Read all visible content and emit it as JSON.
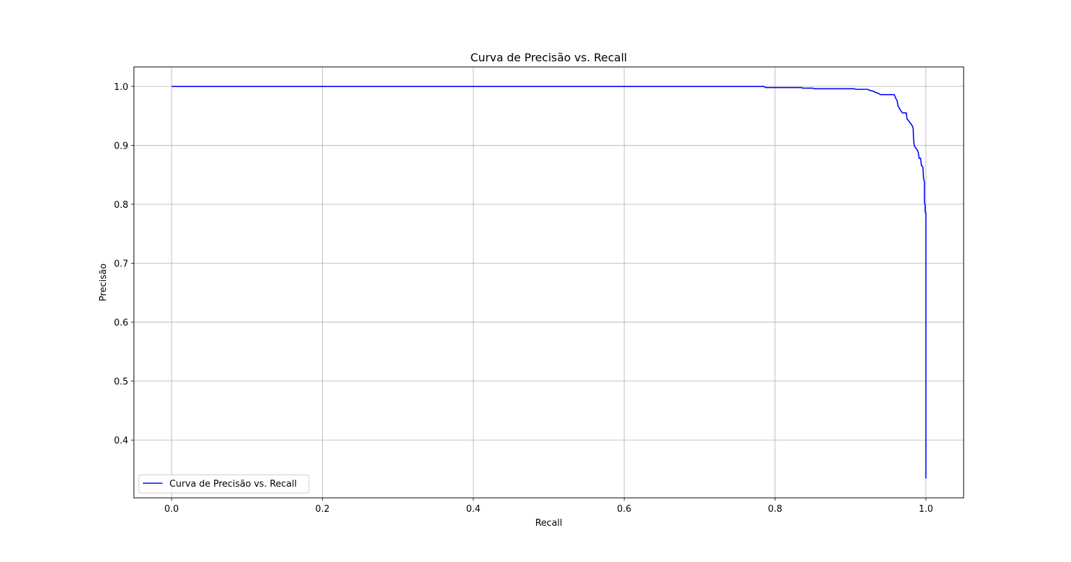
{
  "chart_data": {
    "type": "line",
    "title": "Curva de Precisão vs. Recall",
    "xlabel": "Recall",
    "ylabel": "Precisão",
    "xlim": [
      -0.05,
      1.05
    ],
    "ylim": [
      0.302,
      1.033
    ],
    "xticks": [
      0.0,
      0.2,
      0.4,
      0.6,
      0.8,
      1.0
    ],
    "xtick_labels": [
      "0.0",
      "0.2",
      "0.4",
      "0.6",
      "0.8",
      "1.0"
    ],
    "yticks": [
      0.4,
      0.5,
      0.6,
      0.7,
      0.8,
      0.9,
      1.0
    ],
    "ytick_labels": [
      "0.4",
      "0.5",
      "0.6",
      "0.7",
      "0.8",
      "0.9",
      "1.0"
    ],
    "grid": true,
    "legend_position": "lower-left",
    "series": [
      {
        "name": "Curva de Precisão vs. Recall",
        "color": "#0000ff",
        "points": [
          [
            0.0,
            1.0
          ],
          [
            0.785,
            1.0
          ],
          [
            0.787,
            0.998
          ],
          [
            0.835,
            0.998
          ],
          [
            0.837,
            0.997
          ],
          [
            0.85,
            0.997
          ],
          [
            0.852,
            0.996
          ],
          [
            0.905,
            0.996
          ],
          [
            0.907,
            0.995
          ],
          [
            0.923,
            0.995
          ],
          [
            0.926,
            0.993
          ],
          [
            0.93,
            0.992
          ],
          [
            0.933,
            0.99
          ],
          [
            0.937,
            0.988
          ],
          [
            0.94,
            0.986
          ],
          [
            0.958,
            0.986
          ],
          [
            0.96,
            0.98
          ],
          [
            0.962,
            0.975
          ],
          [
            0.963,
            0.967
          ],
          [
            0.966,
            0.96
          ],
          [
            0.969,
            0.955
          ],
          [
            0.974,
            0.955
          ],
          [
            0.975,
            0.945
          ],
          [
            0.978,
            0.94
          ],
          [
            0.981,
            0.935
          ],
          [
            0.983,
            0.93
          ],
          [
            0.984,
            0.905
          ],
          [
            0.985,
            0.898
          ],
          [
            0.988,
            0.893
          ],
          [
            0.99,
            0.888
          ],
          [
            0.991,
            0.878
          ],
          [
            0.993,
            0.878
          ],
          [
            0.994,
            0.866
          ],
          [
            0.996,
            0.863
          ],
          [
            0.997,
            0.843
          ],
          [
            0.998,
            0.838
          ],
          [
            0.998,
            0.803
          ],
          [
            0.999,
            0.798
          ],
          [
            0.999,
            0.787
          ],
          [
            1.0,
            0.785
          ],
          [
            1.0,
            0.335
          ]
        ]
      }
    ]
  }
}
